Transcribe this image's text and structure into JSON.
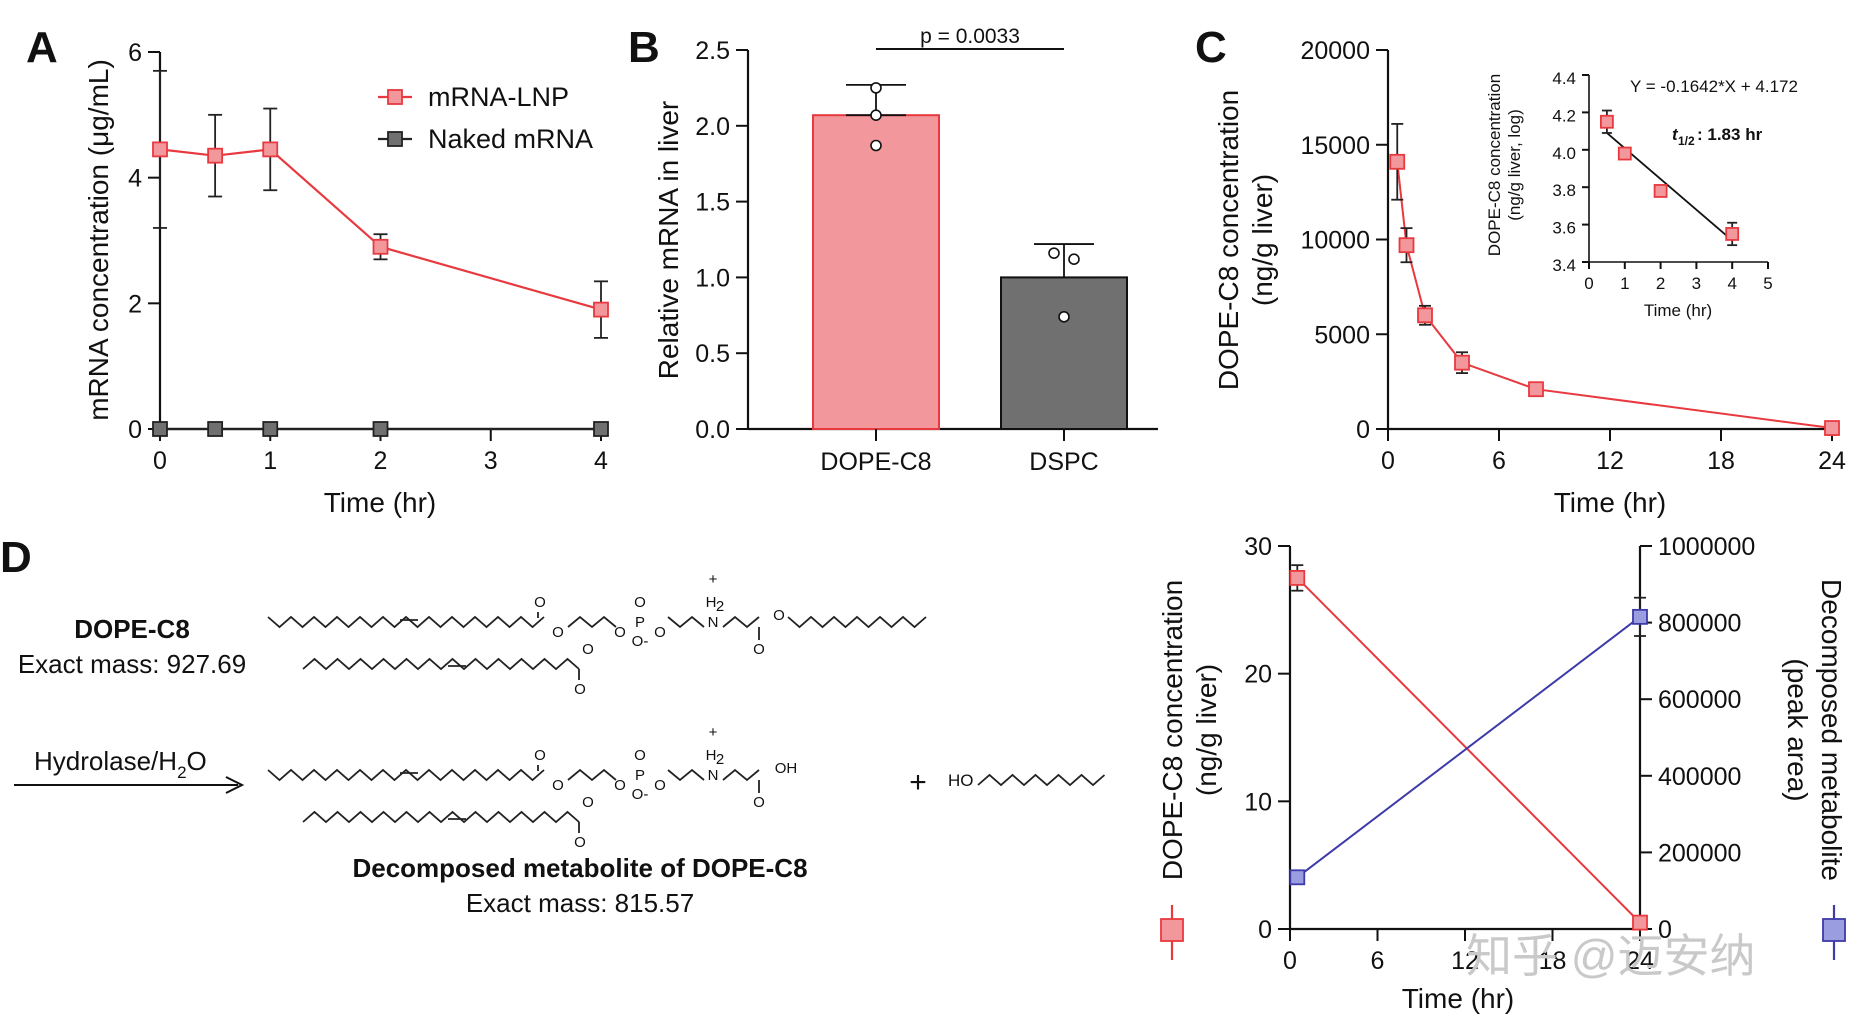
{
  "colors": {
    "red": "#e8393f",
    "red_fill": "#f2989c",
    "gray": "#707070",
    "blue": "#3e3aa8",
    "blue_fill": "#9a9ee0"
  },
  "chart_data": [
    {
      "panel": "A",
      "type": "line",
      "xlabel": "Time (hr)",
      "ylabel": "mRNA concentration (μg/mL)",
      "xlim": [
        0,
        4
      ],
      "ylim": [
        0,
        6
      ],
      "xticks": [
        "0",
        "1",
        "2",
        "3",
        "4"
      ],
      "yticks": [
        "0",
        "2",
        "4",
        "6"
      ],
      "series": [
        {
          "name": "mRNA-LNP",
          "x": [
            0,
            0.5,
            1,
            2,
            4
          ],
          "y": [
            4.45,
            4.35,
            4.45,
            2.9,
            1.9
          ],
          "err": [
            1.25,
            0.65,
            0.65,
            0.2,
            0.45
          ]
        },
        {
          "name": "Naked mRNA",
          "x": [
            0,
            0.5,
            1,
            2,
            4
          ],
          "y": [
            0,
            0,
            0,
            0,
            0
          ],
          "err": [
            0,
            0,
            0,
            0,
            0
          ]
        }
      ]
    },
    {
      "panel": "B",
      "type": "bar",
      "ylabel": "Relative mRNA in liver",
      "ylim": [
        0,
        2.5
      ],
      "yticks": [
        "0.0",
        "0.5",
        "1.0",
        "1.5",
        "2.0",
        "2.5"
      ],
      "categories": [
        "DOPE-C8",
        "DSPC"
      ],
      "values": [
        2.07,
        1.0
      ],
      "err": [
        0.2,
        0.22
      ],
      "points": [
        [
          2.25,
          2.07,
          1.87
        ],
        [
          1.16,
          1.12,
          0.74
        ]
      ],
      "annotation": "p = 0.0033"
    },
    {
      "panel": "C",
      "type": "line",
      "xlabel": "Time (hr)",
      "ylabel": "DOPE-C8 concentration",
      "ylabel2": "(ng/g liver)",
      "xlim": [
        0,
        24
      ],
      "ylim": [
        0,
        20000
      ],
      "xticks": [
        "0",
        "6",
        "12",
        "18",
        "24"
      ],
      "yticks": [
        "0",
        "5000",
        "10000",
        "15000",
        "20000"
      ],
      "x": [
        0.5,
        1,
        2,
        4,
        8,
        24
      ],
      "y": [
        14100,
        9700,
        6000,
        3500,
        2100,
        50
      ],
      "err": [
        2000,
        900,
        500,
        550,
        0,
        0
      ],
      "inset": {
        "type": "scatter-fit",
        "xlabel": "Time (hr)",
        "ylabel": "DOPE-C8 concentration",
        "ylabel2": "(ng/g liver, log)",
        "xlim": [
          0,
          5
        ],
        "ylim": [
          3.4,
          4.4
        ],
        "xticks": [
          "0",
          "1",
          "2",
          "3",
          "4",
          "5"
        ],
        "yticks": [
          "3.4",
          "3.6",
          "3.8",
          "4.0",
          "4.2",
          "4.4"
        ],
        "x": [
          0.5,
          1,
          2,
          4
        ],
        "y": [
          4.15,
          3.98,
          3.78,
          3.55
        ],
        "err": [
          0.06,
          0.02,
          0.02,
          0.06
        ],
        "fit": {
          "slope": -0.1642,
          "intercept": 4.172
        },
        "equation": "Y = -0.1642*X + 4.172",
        "half_life_label": "t",
        "half_life_sub": "1/2",
        "half_life_value": ": 1.83 hr"
      }
    },
    {
      "panel": "D",
      "type": "line-dual-axis",
      "xlabel": "Time (hr)",
      "xlim": [
        0,
        24
      ],
      "xticks": [
        "0",
        "6",
        "12",
        "18",
        "24"
      ],
      "ylabel_left": "DOPE-C8 concentration",
      "ylabel_left2": "(ng/g liver)",
      "ylim_left": [
        0,
        30
      ],
      "yticks_left": [
        "0",
        "10",
        "20",
        "30"
      ],
      "ylabel_right": "Decomposed metabolite",
      "ylabel_right2": "(peak area)",
      "ylim_right": [
        0,
        1000000
      ],
      "yticks_right": [
        "0",
        "200000",
        "400000",
        "600000",
        "800000",
        "1000000"
      ],
      "series": [
        {
          "name": "DOPE-C8 concentration",
          "axis": "left",
          "x": [
            0.5,
            24
          ],
          "y": [
            27.5,
            0.5
          ],
          "err": [
            1.0,
            0
          ]
        },
        {
          "name": "Decomposed metabolite",
          "axis": "right",
          "x": [
            0.5,
            24
          ],
          "y": [
            135000,
            815000
          ],
          "err": [
            10000,
            50000
          ]
        }
      ]
    }
  ],
  "chemistry": {
    "compound1_name": "DOPE-C8",
    "compound1_mass": "Exact mass: 927.69",
    "reaction_text": "Hydrolase/H",
    "reaction_sub": "2",
    "reaction_end": "O",
    "compound2_name": "Decomposed metabolite of DOPE-C8",
    "compound2_mass": "Exact mass: 815.57",
    "plus": "+",
    "alcohol_label": "HO",
    "atoms": {
      "o": "O",
      "p": "P",
      "n": "N",
      "h2": "H",
      "two": "2",
      "plus_charge": "+",
      "minus_charge": "-",
      "oh": "OH"
    }
  },
  "watermark": "知乎 @迈安纳"
}
